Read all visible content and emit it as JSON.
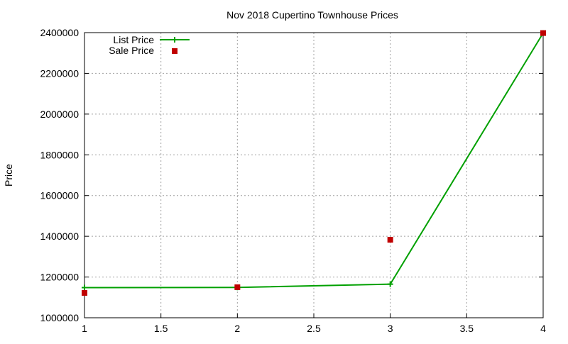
{
  "chart_data": {
    "type": "line",
    "title": "Nov 2018 Cupertino Townhouse Prices",
    "xlabel": "",
    "ylabel": "Price",
    "xlim": [
      1,
      4
    ],
    "ylim": [
      1000000,
      2400000
    ],
    "x_ticks": [
      "1",
      "1.5",
      "2",
      "2.5",
      "3",
      "3.5",
      "4"
    ],
    "y_ticks": [
      "1000000",
      "1200000",
      "1400000",
      "1600000",
      "1800000",
      "2000000",
      "2200000",
      "2400000"
    ],
    "grid": true,
    "legend_position": "top-left",
    "series": [
      {
        "name": "List Price",
        "style": "line+cross",
        "color": "#00a000",
        "x": [
          1,
          2,
          3,
          4
        ],
        "values": [
          1148000,
          1149000,
          1165000,
          2398000
        ]
      },
      {
        "name": "Sale Price",
        "style": "square-points",
        "color": "#c00000",
        "x": [
          1,
          2,
          3,
          4
        ],
        "values": [
          1122000,
          1150000,
          1383000,
          2398000
        ]
      }
    ]
  }
}
